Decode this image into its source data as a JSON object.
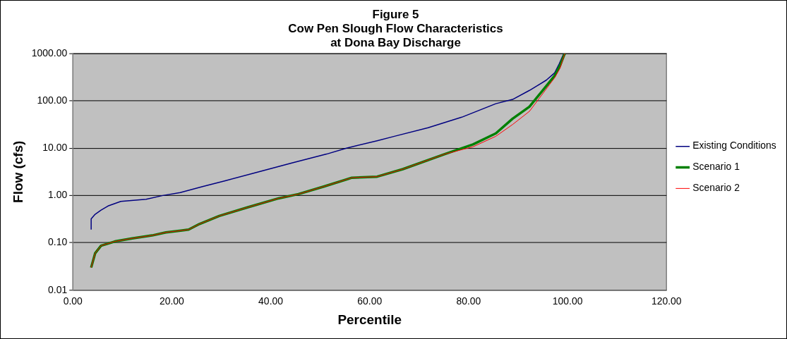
{
  "chart_data": {
    "type": "line",
    "title": [
      "Figure 5",
      "Cow Pen Slough Flow Characteristics",
      "at Dona Bay Discharge"
    ],
    "xlabel": "Percentile",
    "ylabel": "Flow (cfs)",
    "log": "y",
    "grid": "y",
    "legend": "right",
    "marker": "none",
    "xlim": [
      0,
      120
    ],
    "xticks": [
      {
        "value": 0,
        "label": "0.00"
      },
      {
        "value": 20,
        "label": "20.00"
      },
      {
        "value": 40,
        "label": "40.00"
      },
      {
        "value": 60,
        "label": "60.00"
      },
      {
        "value": 80,
        "label": "80.00"
      },
      {
        "value": 100,
        "label": "100.00"
      },
      {
        "value": 120,
        "label": "120.00"
      }
    ],
    "ylim": [
      0.01,
      1000
    ],
    "yticks": [
      {
        "value": 0.01,
        "label": "0.01"
      },
      {
        "value": 0.1,
        "label": "0.10"
      },
      {
        "value": 1,
        "label": "1.00"
      },
      {
        "value": 10,
        "label": "10.00"
      },
      {
        "value": 100,
        "label": "100.00"
      },
      {
        "value": 1000,
        "label": "1000.00"
      }
    ],
    "series": [
      {
        "name": "Existing Conditions",
        "color": "#000080",
        "x": [
          3.7,
          3.7,
          4.5,
          5.7,
          7.1,
          9.7,
          14.8,
          18.2,
          21.7,
          26.2,
          30.8,
          37.6,
          44.4,
          51.3,
          55.3,
          61.5,
          65,
          71.8,
          78.6,
          85.5,
          88.9,
          92.3,
          95.7,
          97.4,
          98.3,
          99.2,
          99.6
        ],
        "values": [
          0.19,
          0.32,
          0.4,
          0.49,
          0.6,
          0.75,
          0.83,
          1.0,
          1.15,
          1.54,
          2.05,
          3.16,
          4.9,
          7.5,
          10,
          14.3,
          17.8,
          27,
          45,
          87,
          107,
          166,
          273,
          390,
          600,
          980,
          1000
        ]
      },
      {
        "name": "Scenario 1",
        "color": "#008000",
        "x": [
          3.7,
          4.5,
          5.7,
          8.5,
          12,
          16,
          18.8,
          23.4,
          25.6,
          29.6,
          35.3,
          41.6,
          45.6,
          50.7,
          56.4,
          61.5,
          66.7,
          75.2,
          80.9,
          85.5,
          88.9,
          92.3,
          95.7,
          97.4,
          98.5,
          99.4,
          99.6
        ],
        "values": [
          0.03,
          0.06,
          0.087,
          0.107,
          0.124,
          0.143,
          0.166,
          0.19,
          0.25,
          0.37,
          0.56,
          0.87,
          1.07,
          1.54,
          2.37,
          2.5,
          3.6,
          7.5,
          12,
          20.5,
          42,
          75,
          205,
          340,
          560,
          980,
          1000
        ]
      },
      {
        "name": "Scenario 2",
        "color": "#ff0000",
        "x": [
          3.7,
          4.5,
          5.7,
          8.5,
          12,
          16,
          18.8,
          23.4,
          25.6,
          29.6,
          35.3,
          41.6,
          45.6,
          50.7,
          56.4,
          61.5,
          66.7,
          75.2,
          80.9,
          85.5,
          88.9,
          92.3,
          95.7,
          97.4,
          98.5,
          99.4,
          99.6
        ],
        "values": [
          0.03,
          0.06,
          0.087,
          0.107,
          0.124,
          0.143,
          0.166,
          0.19,
          0.25,
          0.37,
          0.56,
          0.87,
          1.07,
          1.54,
          2.37,
          2.5,
          3.6,
          7.5,
          10.7,
          17.8,
          31.6,
          60,
          178,
          308,
          490,
          980,
          1000
        ]
      }
    ]
  }
}
